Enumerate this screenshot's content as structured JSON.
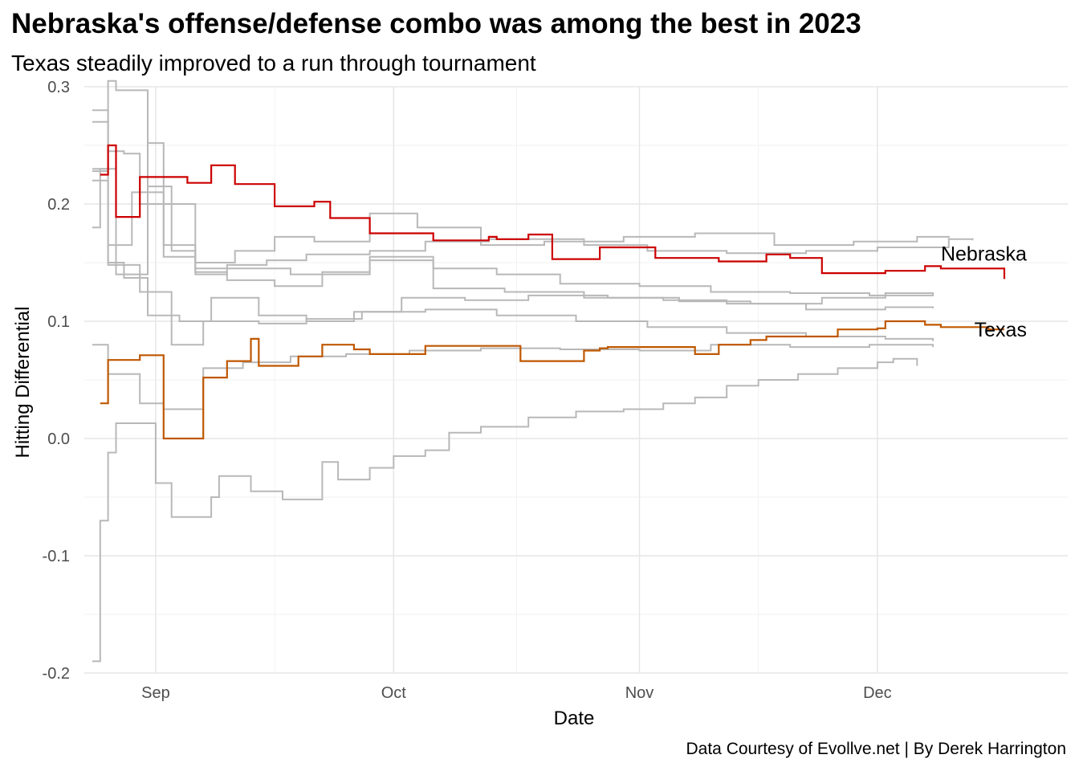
{
  "chart_data": {
    "type": "line",
    "step": true,
    "title": "Nebraska's offense/defense combo was among the best in 2023",
    "subtitle": "Texas steadily improved to a run through tournament",
    "caption": "Data Courtesy of Evollve.net | By Derek Harrington",
    "xlabel": "Date",
    "ylabel": "Hitting Differential",
    "xlim": [
      "2023-08-23",
      "2023-12-25"
    ],
    "ylim": [
      -0.2,
      0.3
    ],
    "x_ticks": [
      {
        "date": "2023-09-01",
        "label": "Sep"
      },
      {
        "date": "2023-10-01",
        "label": "Oct"
      },
      {
        "date": "2023-11-01",
        "label": "Nov"
      },
      {
        "date": "2023-12-01",
        "label": "Dec"
      }
    ],
    "y_ticks": [
      {
        "value": -0.2,
        "label": "-0.2"
      },
      {
        "value": -0.1,
        "label": "-0.1"
      },
      {
        "value": 0.0,
        "label": "0.0"
      },
      {
        "value": 0.1,
        "label": "0.1"
      },
      {
        "value": 0.2,
        "label": "0.2"
      },
      {
        "value": 0.3,
        "label": "0.3"
      }
    ],
    "grid": true,
    "colors": {
      "highlight_nebraska": "#cc0000",
      "highlight_texas": "#bf5700",
      "background_series": "#b8b8b8"
    },
    "series": [
      {
        "name": "Nebraska",
        "highlight": true,
        "color": "#cc0000",
        "points": [
          [
            "2023-08-25",
            0.225
          ],
          [
            "2023-08-26",
            0.25
          ],
          [
            "2023-08-27",
            0.189
          ],
          [
            "2023-08-30",
            0.223
          ],
          [
            "2023-09-05",
            0.218
          ],
          [
            "2023-09-08",
            0.233
          ],
          [
            "2023-09-11",
            0.217
          ],
          [
            "2023-09-16",
            0.198
          ],
          [
            "2023-09-21",
            0.202
          ],
          [
            "2023-09-23",
            0.188
          ],
          [
            "2023-09-28",
            0.175
          ],
          [
            "2023-10-06",
            0.169
          ],
          [
            "2023-10-13",
            0.172
          ],
          [
            "2023-10-14",
            0.17
          ],
          [
            "2023-10-18",
            0.174
          ],
          [
            "2023-10-21",
            0.153
          ],
          [
            "2023-10-27",
            0.163
          ],
          [
            "2023-11-03",
            0.154
          ],
          [
            "2023-11-11",
            0.151
          ],
          [
            "2023-11-17",
            0.157
          ],
          [
            "2023-11-20",
            0.154
          ],
          [
            "2023-11-24",
            0.141
          ],
          [
            "2023-12-02",
            0.143
          ],
          [
            "2023-12-07",
            0.147
          ],
          [
            "2023-12-09",
            0.145
          ],
          [
            "2023-12-17",
            0.143
          ],
          [
            "2023-12-17",
            0.136
          ]
        ]
      },
      {
        "name": "Texas",
        "highlight": true,
        "color": "#bf5700",
        "points": [
          [
            "2023-08-25",
            0.03
          ],
          [
            "2023-08-26",
            0.067
          ],
          [
            "2023-08-30",
            0.071
          ],
          [
            "2023-09-02",
            0.0
          ],
          [
            "2023-09-07",
            0.052
          ],
          [
            "2023-09-10",
            0.066
          ],
          [
            "2023-09-13",
            0.085
          ],
          [
            "2023-09-14",
            0.062
          ],
          [
            "2023-09-19",
            0.07
          ],
          [
            "2023-09-22",
            0.08
          ],
          [
            "2023-09-26",
            0.076
          ],
          [
            "2023-09-28",
            0.072
          ],
          [
            "2023-10-05",
            0.079
          ],
          [
            "2023-10-17",
            0.066
          ],
          [
            "2023-10-25",
            0.075
          ],
          [
            "2023-10-27",
            0.077
          ],
          [
            "2023-10-28",
            0.078
          ],
          [
            "2023-11-08",
            0.072
          ],
          [
            "2023-11-11",
            0.08
          ],
          [
            "2023-11-15",
            0.084
          ],
          [
            "2023-11-17",
            0.087
          ],
          [
            "2023-11-26",
            0.093
          ],
          [
            "2023-12-01",
            0.094
          ],
          [
            "2023-12-02",
            0.1
          ],
          [
            "2023-12-07",
            0.097
          ],
          [
            "2023-12-09",
            0.095
          ],
          [
            "2023-12-15",
            0.093
          ],
          [
            "2023-12-17",
            0.093
          ]
        ]
      },
      {
        "highlight": false,
        "points": [
          [
            "2023-08-24",
            0.228
          ],
          [
            "2023-08-26",
            0.305
          ],
          [
            "2023-08-27",
            0.297
          ],
          [
            "2023-08-31",
            0.215
          ],
          [
            "2023-09-03",
            0.16
          ],
          [
            "2023-09-06",
            0.14
          ],
          [
            "2023-09-10",
            0.148
          ],
          [
            "2023-09-15",
            0.152
          ],
          [
            "2023-09-20",
            0.157
          ],
          [
            "2023-09-28",
            0.16
          ],
          [
            "2023-10-05",
            0.168
          ],
          [
            "2023-10-13",
            0.17
          ],
          [
            "2023-10-25",
            0.165
          ],
          [
            "2023-11-02",
            0.16
          ],
          [
            "2023-11-12",
            0.158
          ],
          [
            "2023-11-22",
            0.16
          ],
          [
            "2023-12-01",
            0.163
          ],
          [
            "2023-12-10",
            0.17
          ],
          [
            "2023-12-13",
            0.169
          ]
        ]
      },
      {
        "highlight": false,
        "points": [
          [
            "2023-08-24",
            0.23
          ],
          [
            "2023-08-26",
            0.245
          ],
          [
            "2023-08-28",
            0.243
          ],
          [
            "2023-08-30",
            0.2
          ],
          [
            "2023-09-02",
            0.165
          ],
          [
            "2023-09-06",
            0.15
          ],
          [
            "2023-09-11",
            0.16
          ],
          [
            "2023-09-16",
            0.172
          ],
          [
            "2023-09-21",
            0.168
          ],
          [
            "2023-09-28",
            0.192
          ],
          [
            "2023-10-04",
            0.18
          ],
          [
            "2023-10-12",
            0.165
          ],
          [
            "2023-10-20",
            0.168
          ],
          [
            "2023-10-30",
            0.172
          ],
          [
            "2023-11-08",
            0.175
          ],
          [
            "2023-11-18",
            0.165
          ],
          [
            "2023-11-28",
            0.168
          ],
          [
            "2023-12-06",
            0.172
          ],
          [
            "2023-12-10",
            0.171
          ]
        ]
      },
      {
        "highlight": false,
        "points": [
          [
            "2023-08-24",
            0.18
          ],
          [
            "2023-08-25",
            0.23
          ],
          [
            "2023-08-27",
            0.14
          ],
          [
            "2023-08-31",
            0.252
          ],
          [
            "2023-09-02",
            0.2
          ],
          [
            "2023-09-06",
            0.142
          ],
          [
            "2023-09-10",
            0.135
          ],
          [
            "2023-09-16",
            0.13
          ],
          [
            "2023-09-22",
            0.142
          ],
          [
            "2023-09-28",
            0.155
          ],
          [
            "2023-10-06",
            0.145
          ],
          [
            "2023-10-14",
            0.14
          ],
          [
            "2023-10-22",
            0.132
          ],
          [
            "2023-11-01",
            0.13
          ],
          [
            "2023-11-10",
            0.125
          ],
          [
            "2023-11-20",
            0.124
          ],
          [
            "2023-11-30",
            0.122
          ],
          [
            "2023-12-08",
            0.124
          ]
        ]
      },
      {
        "highlight": false,
        "points": [
          [
            "2023-08-24",
            0.27
          ],
          [
            "2023-08-26",
            0.15
          ],
          [
            "2023-08-28",
            0.137
          ],
          [
            "2023-08-31",
            0.105
          ],
          [
            "2023-09-04",
            0.1
          ],
          [
            "2023-09-08",
            0.12
          ],
          [
            "2023-09-14",
            0.105
          ],
          [
            "2023-09-20",
            0.1
          ],
          [
            "2023-09-26",
            0.108
          ],
          [
            "2023-10-02",
            0.12
          ],
          [
            "2023-10-10",
            0.118
          ],
          [
            "2023-10-18",
            0.122
          ],
          [
            "2023-10-28",
            0.12
          ],
          [
            "2023-11-06",
            0.117
          ],
          [
            "2023-11-15",
            0.115
          ],
          [
            "2023-11-24",
            0.12
          ],
          [
            "2023-12-02",
            0.124
          ],
          [
            "2023-12-08",
            0.123
          ]
        ]
      },
      {
        "highlight": false,
        "points": [
          [
            "2023-08-24",
            0.28
          ],
          [
            "2023-08-26",
            0.165
          ],
          [
            "2023-08-29",
            0.21
          ],
          [
            "2023-09-02",
            0.155
          ],
          [
            "2023-09-06",
            0.145
          ],
          [
            "2023-09-12",
            0.145
          ],
          [
            "2023-09-18",
            0.14
          ],
          [
            "2023-09-28",
            0.152
          ],
          [
            "2023-10-06",
            0.128
          ],
          [
            "2023-10-15",
            0.125
          ],
          [
            "2023-10-25",
            0.12
          ],
          [
            "2023-11-04",
            0.118
          ],
          [
            "2023-11-12",
            0.115
          ],
          [
            "2023-11-22",
            0.11
          ],
          [
            "2023-12-02",
            0.112
          ],
          [
            "2023-12-08",
            0.111
          ]
        ]
      },
      {
        "highlight": false,
        "points": [
          [
            "2023-08-24",
            0.22
          ],
          [
            "2023-08-26",
            0.148
          ],
          [
            "2023-08-30",
            0.125
          ],
          [
            "2023-09-03",
            0.08
          ],
          [
            "2023-09-07",
            0.1
          ],
          [
            "2023-09-14",
            0.098
          ],
          [
            "2023-09-20",
            0.102
          ],
          [
            "2023-09-27",
            0.108
          ],
          [
            "2023-10-05",
            0.11
          ],
          [
            "2023-10-14",
            0.105
          ],
          [
            "2023-10-24",
            0.1
          ],
          [
            "2023-11-02",
            0.095
          ],
          [
            "2023-11-12",
            0.09
          ],
          [
            "2023-11-22",
            0.087
          ],
          [
            "2023-12-02",
            0.085
          ],
          [
            "2023-12-08",
            0.083
          ]
        ]
      },
      {
        "highlight": false,
        "points": [
          [
            "2023-08-24",
            0.08
          ],
          [
            "2023-08-26",
            0.055
          ],
          [
            "2023-08-30",
            0.03
          ],
          [
            "2023-09-02",
            0.025
          ],
          [
            "2023-09-07",
            0.06
          ],
          [
            "2023-09-12",
            0.065
          ],
          [
            "2023-09-18",
            0.07
          ],
          [
            "2023-09-25",
            0.072
          ],
          [
            "2023-10-03",
            0.075
          ],
          [
            "2023-10-12",
            0.077
          ],
          [
            "2023-10-22",
            0.076
          ],
          [
            "2023-11-01",
            0.075
          ],
          [
            "2023-11-10",
            0.08
          ],
          [
            "2023-11-20",
            0.078
          ],
          [
            "2023-11-30",
            0.08
          ],
          [
            "2023-12-08",
            0.078
          ]
        ]
      },
      {
        "highlight": false,
        "points": [
          [
            "2023-08-24",
            -0.19
          ],
          [
            "2023-08-25",
            -0.07
          ],
          [
            "2023-08-26",
            -0.012
          ],
          [
            "2023-08-27",
            0.013
          ],
          [
            "2023-09-01",
            -0.038
          ],
          [
            "2023-09-03",
            -0.067
          ],
          [
            "2023-09-08",
            -0.05
          ],
          [
            "2023-09-09",
            -0.032
          ],
          [
            "2023-09-13",
            -0.045
          ],
          [
            "2023-09-17",
            -0.052
          ],
          [
            "2023-09-22",
            -0.02
          ],
          [
            "2023-09-24",
            -0.035
          ],
          [
            "2023-09-28",
            -0.025
          ],
          [
            "2023-10-01",
            -0.015
          ],
          [
            "2023-10-05",
            -0.01
          ],
          [
            "2023-10-08",
            0.005
          ],
          [
            "2023-10-12",
            0.01
          ],
          [
            "2023-10-18",
            0.018
          ],
          [
            "2023-10-24",
            0.023
          ],
          [
            "2023-10-30",
            0.025
          ],
          [
            "2023-11-04",
            0.03
          ],
          [
            "2023-11-08",
            0.035
          ],
          [
            "2023-11-12",
            0.045
          ],
          [
            "2023-11-16",
            0.05
          ],
          [
            "2023-11-21",
            0.055
          ],
          [
            "2023-11-26",
            0.06
          ],
          [
            "2023-12-01",
            0.065
          ],
          [
            "2023-12-03",
            0.068
          ],
          [
            "2023-12-06",
            0.062
          ]
        ]
      }
    ]
  }
}
